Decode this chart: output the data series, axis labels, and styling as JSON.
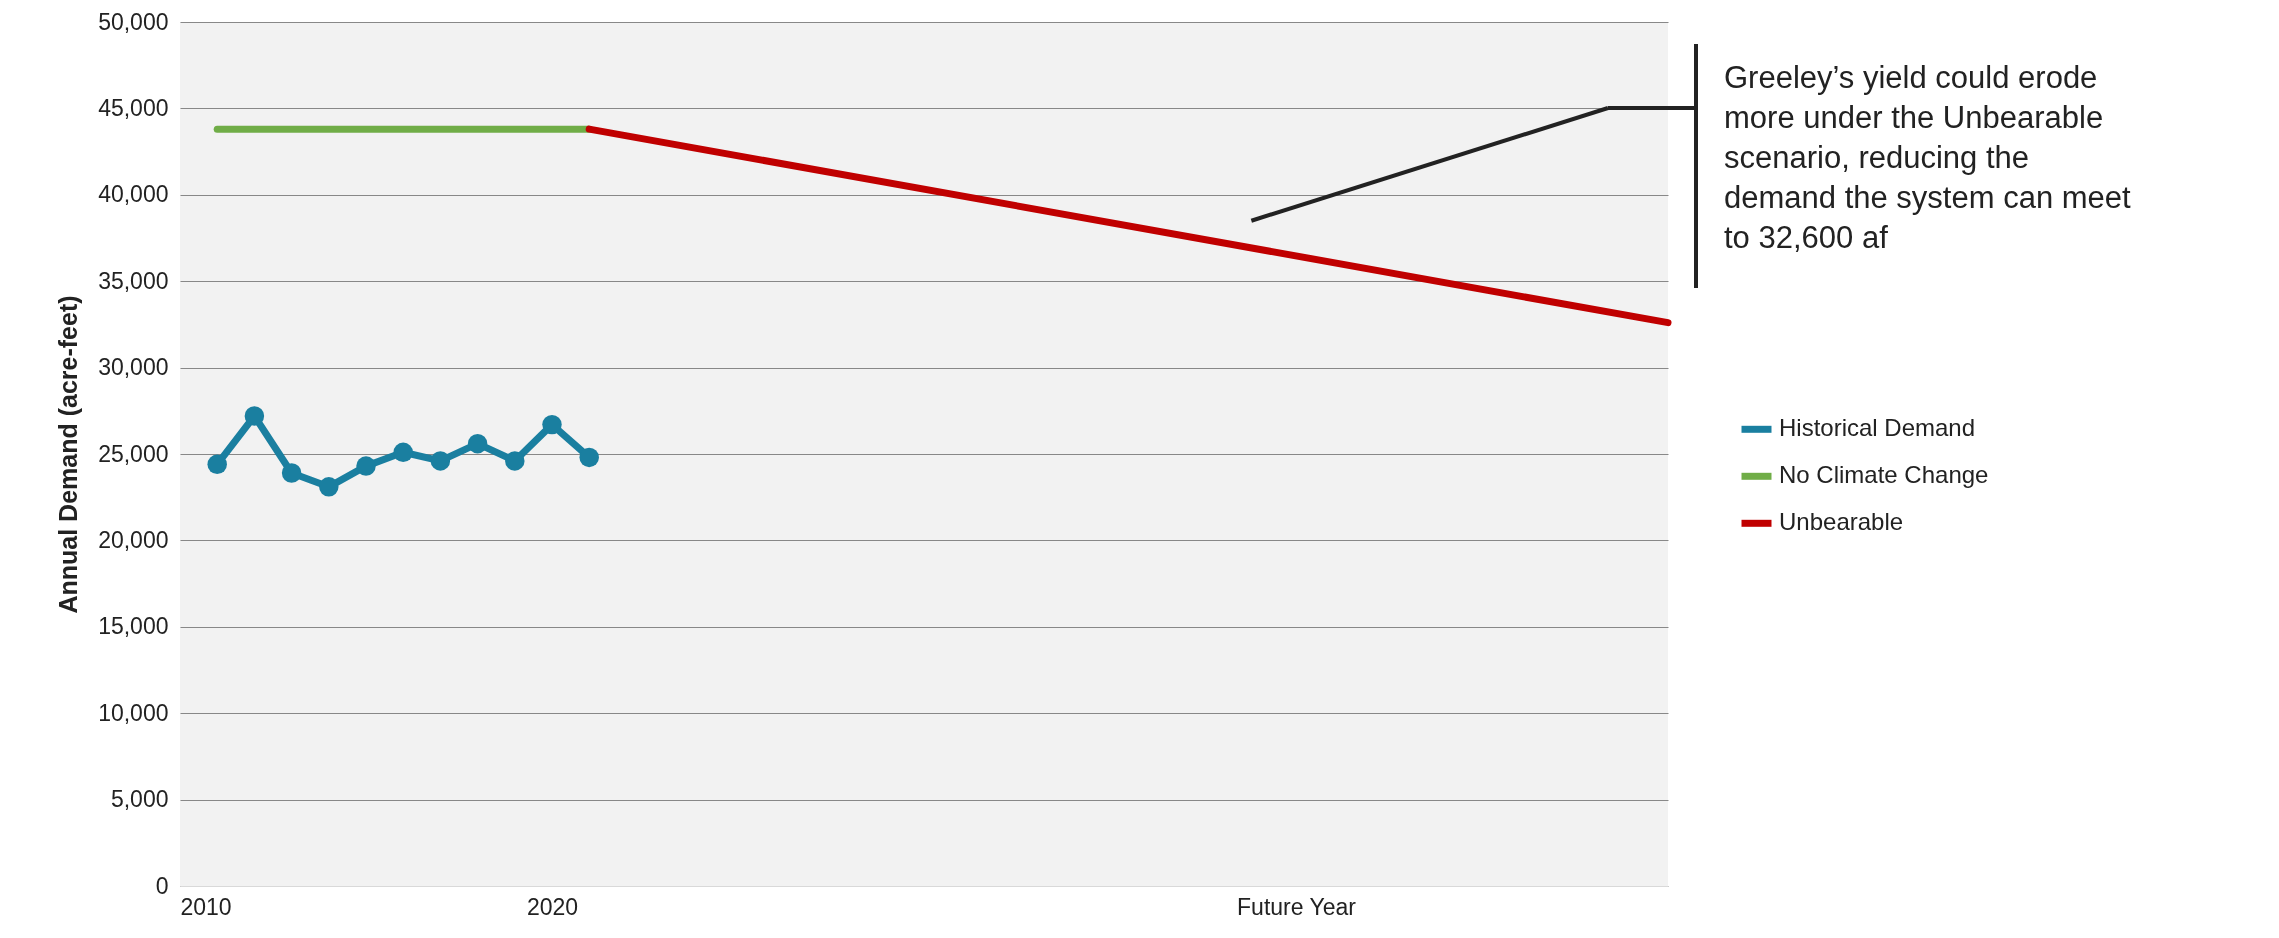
{
  "chart_data": {
    "type": "line",
    "ylabel": "Annual Demand (acre-feet)",
    "xlim": [
      2010,
      2050
    ],
    "xticks": [
      2010,
      2020,
      {
        "value": 2040,
        "label": "Future Year"
      }
    ],
    "ylim": [
      0,
      50000
    ],
    "yticks": [
      0,
      {
        "value": 5000,
        "label": "5,000"
      },
      {
        "value": 10000,
        "label": "10,000"
      },
      {
        "value": 15000,
        "label": "15,000"
      },
      {
        "value": 20000,
        "label": "20,000"
      },
      {
        "value": 25000,
        "label": "25,000"
      },
      {
        "value": 30000,
        "label": "30,000"
      },
      {
        "value": 35000,
        "label": "35,000"
      },
      {
        "value": 40000,
        "label": "40,000"
      },
      {
        "value": 45000,
        "label": "45,000"
      },
      {
        "value": 50000,
        "label": "50,000"
      }
    ],
    "grid": "y",
    "legend": "right",
    "series": [
      {
        "name": "Historical Demand",
        "color": "#1a7fa0",
        "marker": "circle",
        "x": [
          2011,
          2012,
          2013,
          2014,
          2015,
          2016,
          2017,
          2018,
          2019,
          2020,
          2021
        ],
        "values": [
          24400,
          27200,
          23900,
          23100,
          24300,
          25100,
          24600,
          25600,
          24600,
          26700,
          24800
        ]
      },
      {
        "name": "No Climate Change",
        "color": "#70ad47",
        "x": [
          2011,
          2021
        ],
        "values": [
          43800,
          43800
        ]
      },
      {
        "name": "Unbearable",
        "color": "#c00000",
        "x": [
          2021,
          2050
        ],
        "values": [
          43800,
          32600
        ]
      }
    ],
    "annotations": [
      "Greeley’s yield could erode more under the Unbearable scenario, reducing the demand the system can meet to 32,600 af"
    ]
  }
}
